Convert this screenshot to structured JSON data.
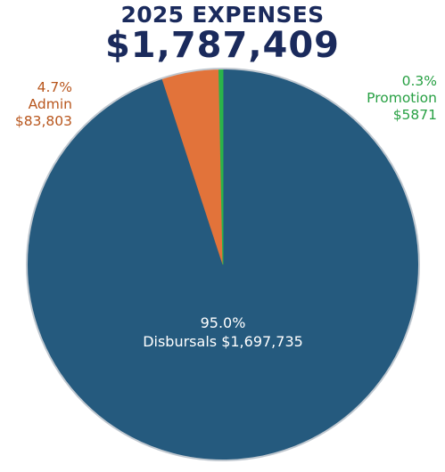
{
  "chart_data": {
    "type": "pie",
    "title": "2025 EXPENSES",
    "subtitle": "$1,787,409",
    "categories": [
      "Disbursals",
      "Admin",
      "Promotion"
    ],
    "values": [
      1697735,
      83803,
      5871
    ],
    "percent_labels": [
      "95.0%",
      "4.7%",
      "0.3%"
    ],
    "value_labels": [
      "$1,697,735",
      "$83,803",
      "$5871"
    ],
    "colors": [
      "#255a7e",
      "#e2733a",
      "#2ab34a"
    ],
    "start_angle": "12 o'clock",
    "direction": "clockwise"
  },
  "labels": {
    "admin": {
      "pct": "4.7%",
      "name": "Admin",
      "value": "$83,803"
    },
    "promotion": {
      "pct": "0.3%",
      "name": "Promotion",
      "value": "$5871"
    },
    "disbursals": {
      "pct": "95.0%",
      "text": "Disbursals $1,697,735"
    }
  }
}
